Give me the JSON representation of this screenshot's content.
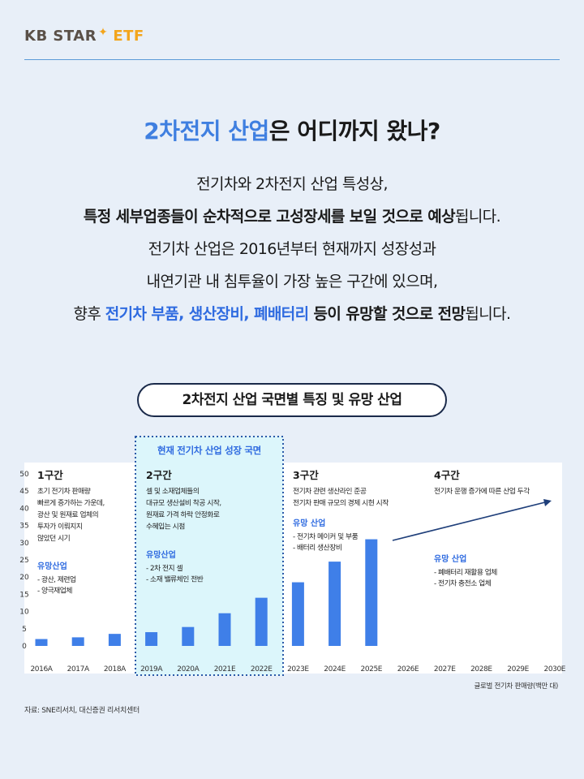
{
  "logo": {
    "main": "KB STAR",
    "suffix": "ETF"
  },
  "headline": {
    "highlight": "2차전지 산업",
    "rest": "은 어디까지 왔나?"
  },
  "body": {
    "line1": "전기차와 2차전지 산업 특성상,",
    "line2_bold": "특정 세부업종들이 순차적으로 고성장세를 보일 것으로 예상",
    "line2_rest": "됩니다.",
    "line3": "전기차 산업은 2016년부터 현재까지 성장성과",
    "line4": "내연기관 내 침투율이 가장 높은 구간에 있으며,",
    "line5_pre": "향후 ",
    "line5_blue": "전기차 부품, 생산장비, 폐배터리",
    "line5_bold": " 등이 유망할 것으로 전망",
    "line5_rest": "됩니다."
  },
  "section_title": "2차전지 산업 국면별 특징 및 유망 산업",
  "highlight_label": "현재 전기차 산업 성장 국면",
  "colors": {
    "bar": "#3f7fe8",
    "accent": "#2f6be0",
    "highlight_bg": "#dcf6fb",
    "highlight_border": "#2b5aa8",
    "arrow": "#1f3f7a"
  },
  "phases": [
    {
      "title": "1구간",
      "desc": [
        "초기 전기차 판매량",
        "빠르게 증가하는 가운데,",
        "광산 및 원재료 업체의",
        "투자가 이뤄지지",
        "않았던 시기"
      ],
      "sub_title": "유망산업",
      "sub_items": [
        "- 광산, 제련업",
        "- 양극재업체"
      ]
    },
    {
      "title": "2구간",
      "desc": [
        "셀 및 소재업체들의",
        "대규모 생산설비 착공 시작,",
        "원재료 가격 하락 안정화로",
        "수혜입는 시점"
      ],
      "sub_title": "유망산업",
      "sub_items": [
        "- 2차 전지 셀",
        "- 소재 밸류체인 전반"
      ]
    },
    {
      "title": "3구간",
      "desc": [
        "전기차 관련 생산라인 준공",
        "전기차 판매 규모의 경제 시현 시작"
      ],
      "sub_title": "유망 산업",
      "sub_items": [
        "- 전기차 메이커 및 부품",
        "- 배터리 생산장비"
      ]
    },
    {
      "title": "4구간",
      "desc": [
        "전기차 운행 증가에 따른 산업 두각"
      ],
      "sub_title": "유망 산업",
      "sub_items": [
        "- 폐배터리 재활용 업체",
        "- 전기차 충전소 업체"
      ]
    }
  ],
  "chart_data": {
    "type": "bar",
    "categories": [
      "2016A",
      "2017A",
      "2018A",
      "2019A",
      "2020A",
      "2021E",
      "2022E",
      "2023E",
      "2024E",
      "2025E",
      "2026E",
      "2027E",
      "2028E",
      "2029E",
      "2030E"
    ],
    "values": [
      2,
      2.5,
      3.5,
      4,
      5.5,
      9.5,
      14,
      18.5,
      24.5,
      31,
      null,
      null,
      null,
      null,
      null
    ],
    "y_ticks": [
      "0",
      "5",
      "10",
      "15",
      "20",
      "25",
      "30",
      "35",
      "40",
      "45",
      "50"
    ],
    "ylim": [
      0,
      50
    ],
    "grid": false,
    "unit_note": "글로벌 전기차 판매량(백만 대)"
  },
  "source": "자료: SNE리서치, 대신증권 리서치센터"
}
